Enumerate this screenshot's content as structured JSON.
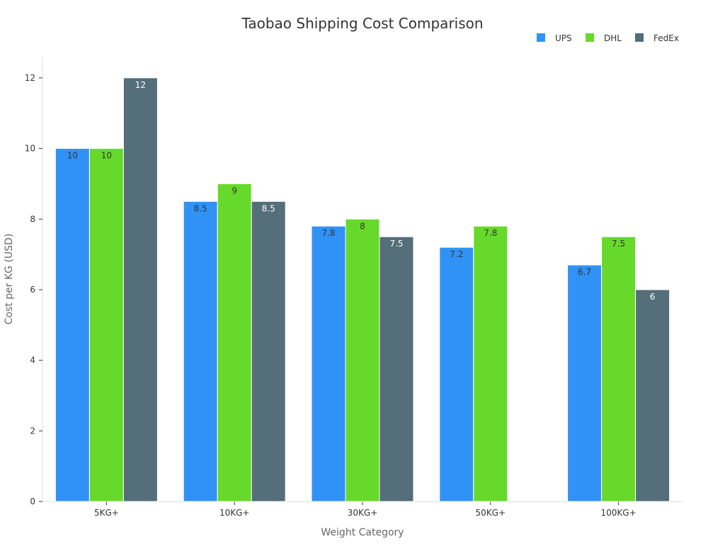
{
  "chart_data": {
    "type": "bar",
    "title": "Taobao Shipping Cost Comparison",
    "xlabel": "Weight Category",
    "ylabel": "Cost per KG (USD)",
    "ylim": [
      0,
      12.6
    ],
    "yticks": [
      0,
      2,
      4,
      6,
      8,
      10,
      12
    ],
    "categories": [
      "5KG+",
      "10KG+",
      "30KG+",
      "50KG+",
      "100KG+"
    ],
    "series": [
      {
        "name": "UPS",
        "color": "#3192f6",
        "label_color": "#333333",
        "values": [
          10,
          8.5,
          7.8,
          7.2,
          6.7
        ]
      },
      {
        "name": "DHL",
        "color": "#66d92a",
        "label_color": "#333333",
        "values": [
          10,
          9,
          8,
          7.8,
          7.5
        ]
      },
      {
        "name": "FedEx",
        "color": "#546e7a",
        "label_color": "#ffffff",
        "values": [
          12,
          8.5,
          7.5,
          null,
          6
        ]
      }
    ],
    "legend_position": "top-right",
    "grid": false
  }
}
